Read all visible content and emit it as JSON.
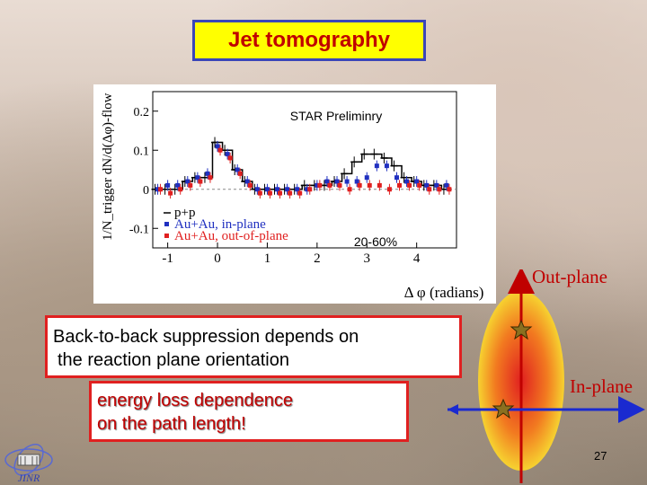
{
  "title": "Jet tomography",
  "chart_data": {
    "type": "scatter",
    "title": "",
    "annotation": "STAR Preliminry",
    "centrality": "20-60%",
    "xlabel": "Δ φ (radians)",
    "ylabel": "1/N_trigger dN/d(Δφ)-flow",
    "xlim": [
      -1.3,
      4.8
    ],
    "ylim": [
      -0.15,
      0.25
    ],
    "xticks": [
      -1,
      0,
      1,
      2,
      3,
      4
    ],
    "yticks": [
      -0.1,
      0,
      0.1,
      0.2
    ],
    "xtick_labels": [
      "-1",
      "0",
      "1",
      "2",
      "3",
      "4"
    ],
    "ytick_labels": [
      "-0.1",
      "0",
      "0.1",
      "0.2"
    ],
    "legend": [
      "p+p",
      "Au+Au, in-plane",
      "Au+Au, out-of-plane"
    ],
    "legend_position": "bottom-left",
    "x": [
      -1.2,
      -1.0,
      -0.8,
      -0.6,
      -0.4,
      -0.2,
      0.0,
      0.2,
      0.4,
      0.6,
      0.8,
      1.0,
      1.2,
      1.4,
      1.6,
      1.8,
      2.0,
      2.2,
      2.4,
      2.6,
      2.8,
      3.0,
      3.2,
      3.4,
      3.6,
      3.8,
      4.0,
      4.2,
      4.4,
      4.6
    ],
    "series": [
      {
        "name": "p+p",
        "color": "#000000",
        "values": [
          0.0,
          0.0,
          0.0,
          0.02,
          0.03,
          0.03,
          0.12,
          0.1,
          0.05,
          0.02,
          0.0,
          0.0,
          0.0,
          0.0,
          0.0,
          0.01,
          0.01,
          0.01,
          0.02,
          0.04,
          0.07,
          0.09,
          0.09,
          0.08,
          0.06,
          0.03,
          0.02,
          0.01,
          0.01,
          0.0
        ]
      },
      {
        "name": "Au+Au, in-plane",
        "color": "#2030c0",
        "values": [
          0.0,
          0.01,
          0.01,
          0.02,
          0.03,
          0.04,
          0.11,
          0.09,
          0.05,
          0.02,
          0.0,
          0.0,
          0.0,
          0.0,
          0.0,
          0.0,
          0.01,
          0.02,
          0.02,
          0.02,
          0.02,
          0.03,
          0.06,
          0.06,
          0.03,
          0.02,
          0.02,
          0.01,
          0.01,
          0.01
        ]
      },
      {
        "name": "Au+Au, out-of-plane",
        "color": "#e02020",
        "values": [
          0.0,
          -0.01,
          0.0,
          0.01,
          0.02,
          0.03,
          0.1,
          0.08,
          0.04,
          0.01,
          -0.01,
          -0.01,
          -0.01,
          -0.01,
          -0.01,
          0.0,
          0.01,
          0.01,
          0.01,
          0.0,
          0.01,
          0.01,
          0.01,
          0.0,
          0.01,
          0.01,
          0.01,
          0.0,
          0.0,
          0.0
        ]
      }
    ]
  },
  "box_main_line1": "Back-to-back suppression depends on",
  "box_main_line2": "the reaction plane orientation",
  "box_sub_line1": "energy loss dependence",
  "box_sub_line2": "on the path length!",
  "out_plane_label": "Out-plane",
  "in_plane_label": "In-plane",
  "page_number": "27",
  "logo_text": "JINR",
  "colors": {
    "title_bg": "#ffff00",
    "title_border": "#3a46b8",
    "accent_red": "#c00000",
    "arrow_blue": "#1a2ad0"
  }
}
